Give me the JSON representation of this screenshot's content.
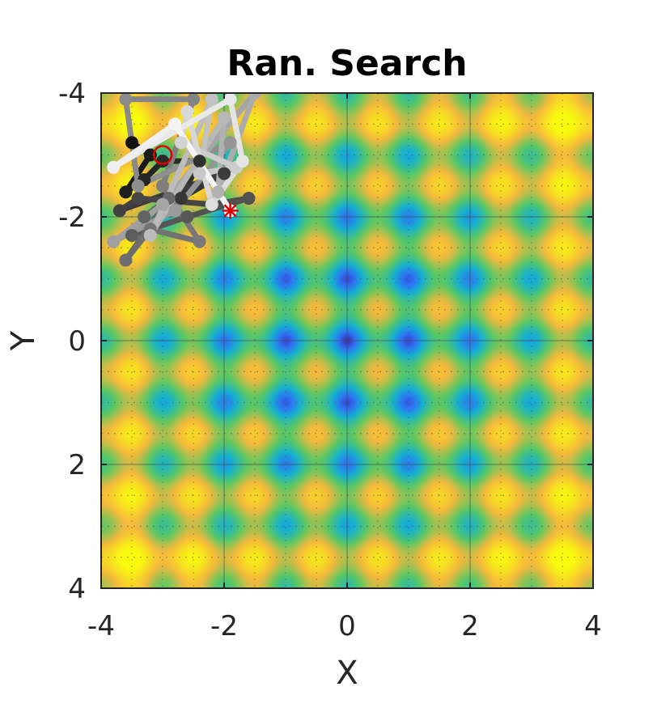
{
  "chart_data": {
    "type": "heatmap",
    "title": "Ran. Search",
    "xlabel": "X",
    "ylabel": "Y",
    "xlim": [
      -4,
      4
    ],
    "ylim": [
      -4,
      4
    ],
    "y_direction": "reversed",
    "xticks": [
      "-4",
      "-2",
      "0",
      "2",
      "4"
    ],
    "yticks": [
      "-4",
      "-2",
      "0",
      "2",
      "4"
    ],
    "grid": true,
    "colormap": [
      "#3e26a8",
      "#2f6ff6",
      "#15b1d0",
      "#5ac864",
      "#f5b93c",
      "#f9fb0e"
    ],
    "search_path": {
      "type": "line",
      "points": [
        [
          -3.5,
          -3.2
        ],
        [
          -3.2,
          -3.0
        ],
        [
          -3.6,
          -2.4
        ],
        [
          -3.3,
          -2.6
        ],
        [
          -3.0,
          -2.9
        ],
        [
          -2.4,
          -2.9
        ],
        [
          -2.7,
          -2.3
        ],
        [
          -2.0,
          -2.7
        ],
        [
          -3.7,
          -2.1
        ],
        [
          -3.4,
          -2.3
        ],
        [
          -2.2,
          -2.2
        ],
        [
          -1.6,
          -2.3
        ],
        [
          -2.6,
          -2.0
        ],
        [
          -3.5,
          -1.7
        ],
        [
          -3.3,
          -2.0
        ],
        [
          -2.9,
          -2.3
        ],
        [
          -3.6,
          -1.3
        ],
        [
          -3.2,
          -1.8
        ],
        [
          -2.4,
          -1.6
        ],
        [
          -3.0,
          -2.5
        ],
        [
          -2.5,
          -3.9
        ],
        [
          -3.6,
          -3.9
        ],
        [
          -3.4,
          -2.5
        ],
        [
          -1.9,
          -3.2
        ],
        [
          -2.8,
          -2.1
        ],
        [
          -3.8,
          -1.6
        ],
        [
          -3.0,
          -2.2
        ],
        [
          -1.5,
          -4.0
        ],
        [
          -2.1,
          -2.4
        ],
        [
          -2.0,
          -3.6
        ],
        [
          -3.2,
          -1.7
        ],
        [
          -2.2,
          -3.9
        ],
        [
          -2.4,
          -2.7
        ],
        [
          -1.8,
          -2.8
        ],
        [
          -2.7,
          -3.2
        ],
        [
          -2.6,
          -3.7
        ],
        [
          -2.2,
          -2.2
        ],
        [
          -1.7,
          -2.9
        ],
        [
          -1.9,
          -3.9
        ],
        [
          -3.8,
          -2.8
        ],
        [
          -2.8,
          -3.5
        ],
        [
          -1.9,
          -2.1
        ]
      ]
    },
    "start_marker": {
      "x": -3.0,
      "y": -3.0,
      "shape": "circle",
      "color": "#e00000"
    },
    "best_marker": {
      "x": -1.9,
      "y": -2.1,
      "shape": "asterisk",
      "color": "#e00000"
    }
  }
}
